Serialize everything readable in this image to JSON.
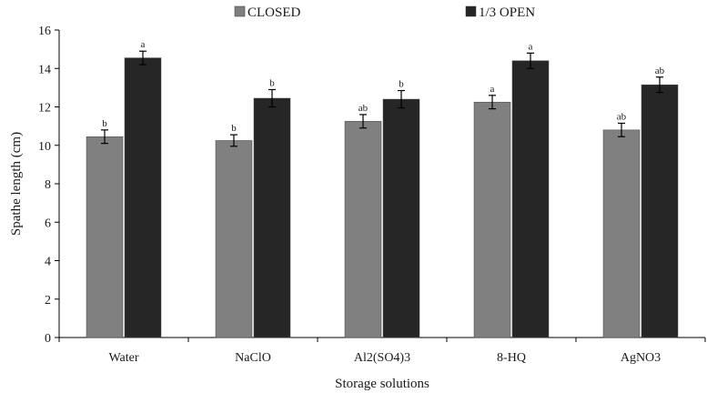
{
  "chart_data": {
    "type": "bar",
    "title": "",
    "xlabel": "Storage solutions",
    "ylabel": "Spathe length (cm)",
    "ylim": [
      0,
      16
    ],
    "yticks": [
      "0",
      "2",
      "4",
      "6",
      "8",
      "10",
      "12",
      "14",
      "16"
    ],
    "grid": false,
    "legend_position": "top",
    "categories": [
      "Water",
      "NaClO",
      "Al2(SO4)3",
      "8-HQ",
      "AgNO3"
    ],
    "series": [
      {
        "name": "CLOSED",
        "color": "#808080",
        "values": [
          10.45,
          10.25,
          11.25,
          12.25,
          10.8
        ],
        "errors": [
          0.35,
          0.3,
          0.35,
          0.35,
          0.35
        ],
        "labels": [
          "b",
          "b",
          "ab",
          "a",
          "ab"
        ]
      },
      {
        "name": "1/3 OPEN",
        "color": "#262626",
        "values": [
          14.55,
          12.45,
          12.4,
          14.4,
          13.15
        ],
        "errors": [
          0.35,
          0.45,
          0.45,
          0.4,
          0.4
        ],
        "labels": [
          "a",
          "b",
          "b",
          "a",
          "ab"
        ]
      }
    ]
  }
}
